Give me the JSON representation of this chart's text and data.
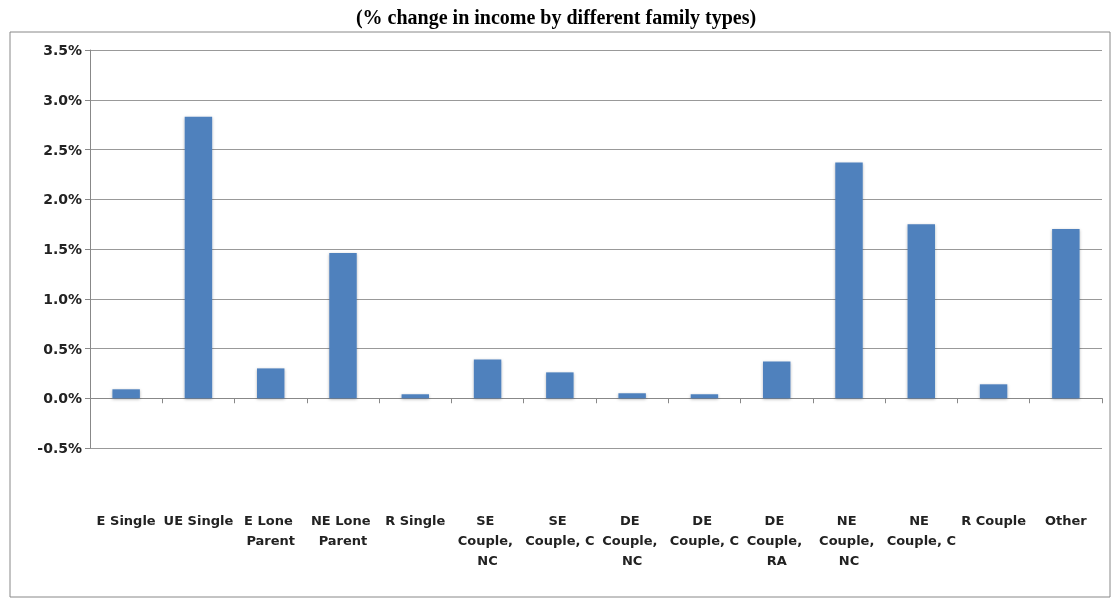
{
  "chart_data": {
    "type": "bar",
    "title": "(% change in income by different family types)",
    "categories": [
      "E Single",
      "UE Single",
      "E Lone Parent",
      "NE Lone Parent",
      "R Single",
      "SE Couple, NC",
      "SE Couple, C",
      "DE Couple, NC",
      "DE Couple, C",
      "DE Couple, RA",
      "NE Couple, NC",
      "NE Couple, C",
      "R Couple",
      "Other"
    ],
    "values": [
      0.09,
      2.83,
      0.3,
      1.46,
      0.04,
      0.39,
      0.26,
      0.05,
      0.04,
      0.37,
      2.37,
      1.75,
      0.14,
      1.7
    ],
    "color": "#4f81bd",
    "ylim": [
      -0.5,
      3.5
    ],
    "yticks": [
      {
        "value": -0.5,
        "label": "-0.5%"
      },
      {
        "value": 0,
        "label": "0.0%"
      },
      {
        "value": 0.5,
        "label": "0.5%"
      },
      {
        "value": 1,
        "label": "1.0%"
      },
      {
        "value": 1.5,
        "label": "1.5%"
      },
      {
        "value": 2,
        "label": "2.0%"
      },
      {
        "value": 2.5,
        "label": "2.5%"
      },
      {
        "value": 3,
        "label": "3.0%"
      },
      {
        "value": 3.5,
        "label": "3.5%"
      }
    ],
    "grid": "y"
  }
}
